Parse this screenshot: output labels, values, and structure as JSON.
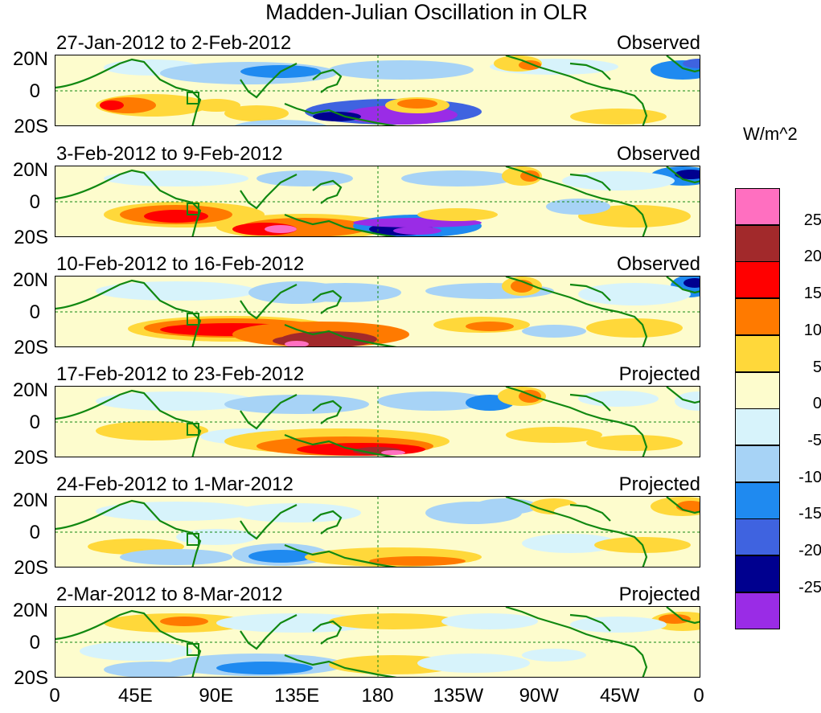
{
  "title": "Madden-Julian Oscillation in OLR",
  "units": "W/m^2",
  "lat_labels": [
    "20N",
    "0",
    "20S"
  ],
  "lon_labels": [
    "0",
    "45E",
    "90E",
    "135E",
    "180",
    "135W",
    "90W",
    "45W",
    "0"
  ],
  "panels": [
    {
      "date_range": "27-Jan-2012 to 2-Feb-2012",
      "status": "Observed"
    },
    {
      "date_range": "3-Feb-2012 to 9-Feb-2012",
      "status": "Observed"
    },
    {
      "date_range": "10-Feb-2012 to 16-Feb-2012",
      "status": "Observed"
    },
    {
      "date_range": "17-Feb-2012 to 23-Feb-2012",
      "status": "Projected"
    },
    {
      "date_range": "24-Feb-2012 to 1-Mar-2012",
      "status": "Projected"
    },
    {
      "date_range": "2-Mar-2012 to 8-Mar-2012",
      "status": "Projected"
    }
  ],
  "legend": {
    "colors": [
      "#ff6fc0",
      "#a2292b",
      "#ff0000",
      "#ff7a00",
      "#ffd83a",
      "#fdfccd",
      "#d7f3fb",
      "#a7d3f6",
      "#1f8af0",
      "#3f63e0",
      "#00008f",
      "#9a2ce6"
    ],
    "ticks": [
      "25",
      "20",
      "15",
      "10",
      "5",
      "0",
      "-5",
      "-10",
      "-15",
      "-20",
      "-25"
    ]
  },
  "colors": {
    "coastline": "#118811",
    "grid": "#118811",
    "background": "#ffffff"
  }
}
